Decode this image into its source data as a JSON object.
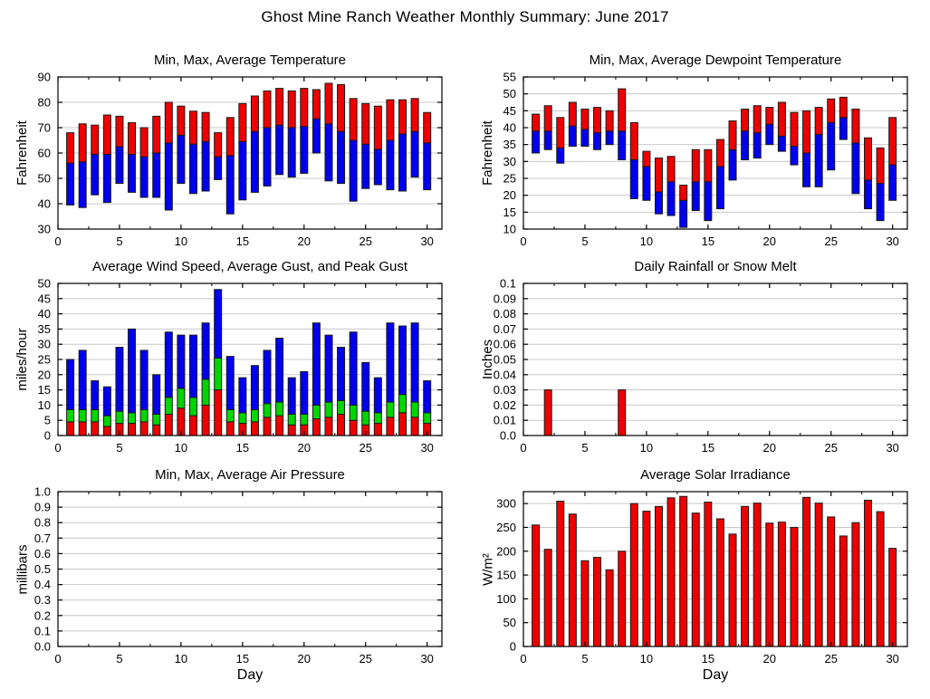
{
  "page": {
    "title": "Ghost Mine Ranch Weather Monthly Summary: June 2017"
  },
  "colors": {
    "red": "#ee0000",
    "blue": "#0000ee",
    "green": "#00d500",
    "bar_outline": "#1a1a1a",
    "grid": "#c8c8c8",
    "frame": "#000000"
  },
  "chart_data": [
    {
      "id": "temperature",
      "type": "bar",
      "subtype": "min-avg-max-range-bars",
      "title": "Min, Max, Average Temperature",
      "ylabel": "Fahrenheit",
      "xlabel": "",
      "ylim": [
        30,
        90
      ],
      "yticks": [
        30,
        40,
        50,
        60,
        70,
        80,
        90
      ],
      "ytick_labels": [
        "30",
        "40",
        "50",
        "60",
        "70",
        "80",
        "90"
      ],
      "xlim": [
        0,
        31.2
      ],
      "xticks": [
        0,
        5,
        10,
        15,
        20,
        25,
        30
      ],
      "grid": "horizontal",
      "legend": "none",
      "days": [
        1,
        2,
        3,
        4,
        5,
        6,
        7,
        8,
        9,
        10,
        11,
        12,
        13,
        14,
        15,
        16,
        17,
        18,
        19,
        20,
        21,
        22,
        23,
        24,
        25,
        26,
        27,
        28,
        29,
        30
      ],
      "stacks": [
        {
          "name": "min-to-average",
          "lower": "min",
          "upper": "avg",
          "color": "blue"
        },
        {
          "name": "average-to-max",
          "lower": "avg",
          "upper": "max",
          "color": "red"
        }
      ],
      "values": {
        "min": [
          39.5,
          38.5,
          43.5,
          40.5,
          48,
          44.5,
          42.5,
          42.5,
          37.5,
          48,
          44,
          45,
          49.5,
          36,
          41.5,
          44.5,
          47,
          51.5,
          50.5,
          52,
          60,
          49,
          48,
          41,
          46,
          47.5,
          45.5,
          45,
          50.5,
          45.5
        ],
        "avg": [
          56,
          56.5,
          59.5,
          59.5,
          62.5,
          59.5,
          58.5,
          60,
          64,
          67,
          63.5,
          64.5,
          58.5,
          59,
          64.5,
          68.5,
          70,
          71,
          70,
          70.5,
          73.5,
          71.5,
          68.5,
          65,
          63.5,
          61.5,
          65,
          67.5,
          68.5,
          64
        ],
        "max": [
          68,
          71.5,
          71,
          75,
          74.5,
          72,
          70,
          74.5,
          80,
          78.5,
          76.5,
          76,
          68,
          74,
          79.5,
          82.5,
          84.5,
          85.5,
          84.5,
          85.5,
          85,
          87.5,
          87,
          81.5,
          79.5,
          78.5,
          81,
          81,
          81.5,
          76
        ]
      }
    },
    {
      "id": "dewpoint",
      "type": "bar",
      "subtype": "min-avg-max-range-bars",
      "title": "Min, Max, Average Dewpoint Temperature",
      "ylabel": "Fahrenheit",
      "xlabel": "",
      "ylim": [
        10,
        55
      ],
      "yticks": [
        10,
        15,
        20,
        25,
        30,
        35,
        40,
        45,
        50,
        55
      ],
      "ytick_labels": [
        "10",
        "15",
        "20",
        "25",
        "30",
        "35",
        "40",
        "45",
        "50",
        "55"
      ],
      "xlim": [
        0,
        31.2
      ],
      "xticks": [
        0,
        5,
        10,
        15,
        20,
        25,
        30
      ],
      "grid": "horizontal",
      "legend": "none",
      "days": [
        1,
        2,
        3,
        4,
        5,
        6,
        7,
        8,
        9,
        10,
        11,
        12,
        13,
        14,
        15,
        16,
        17,
        18,
        19,
        20,
        21,
        22,
        23,
        24,
        25,
        26,
        27,
        28,
        29,
        30
      ],
      "stacks": [
        {
          "name": "min-to-average",
          "lower": "min",
          "upper": "avg",
          "color": "blue"
        },
        {
          "name": "average-to-max",
          "lower": "avg",
          "upper": "max",
          "color": "red"
        }
      ],
      "values": {
        "min": [
          32.5,
          33.5,
          29.5,
          34.5,
          34.5,
          33.5,
          35,
          30.5,
          19,
          18.5,
          14.5,
          14,
          10.5,
          15.5,
          12.5,
          16,
          24.5,
          30.5,
          31,
          35,
          33,
          29,
          22.5,
          22.5,
          27.5,
          36.5,
          20.5,
          16,
          12.5,
          18.5
        ],
        "avg": [
          39,
          39,
          34,
          40.5,
          39.5,
          38.5,
          39,
          39,
          30.5,
          28.5,
          21,
          24,
          18.5,
          24,
          24,
          28.5,
          33.5,
          39,
          38.5,
          41,
          37.5,
          34.5,
          32.5,
          38,
          41.5,
          43,
          35.5,
          24.5,
          23.5,
          29
        ],
        "max": [
          44,
          46.5,
          43,
          47.5,
          45.5,
          46,
          45,
          51.5,
          41.5,
          33,
          31,
          31.5,
          23,
          33.5,
          33.5,
          36.5,
          42,
          45.5,
          46.5,
          46,
          47.5,
          44.5,
          45,
          46,
          48.5,
          49,
          45.5,
          37,
          34,
          43
        ]
      }
    },
    {
      "id": "wind",
      "type": "bar",
      "subtype": "stacked-bars",
      "title": "Average Wind Speed, Average Gust, and Peak Gust",
      "ylabel": "miles/hour",
      "xlabel": "",
      "ylim": [
        0,
        50
      ],
      "yticks": [
        0,
        5,
        10,
        15,
        20,
        25,
        30,
        35,
        40,
        45,
        50
      ],
      "ytick_labels": [
        "0",
        "5",
        "10",
        "15",
        "20",
        "25",
        "30",
        "35",
        "40",
        "45",
        "50"
      ],
      "xlim": [
        0,
        31.2
      ],
      "xticks": [
        0,
        5,
        10,
        15,
        20,
        25,
        30
      ],
      "grid": "horizontal",
      "legend": "none",
      "days": [
        1,
        2,
        3,
        4,
        5,
        6,
        7,
        8,
        9,
        10,
        11,
        12,
        13,
        14,
        15,
        16,
        17,
        18,
        19,
        20,
        21,
        22,
        23,
        24,
        25,
        26,
        27,
        28,
        29,
        30
      ],
      "stacks": [
        {
          "name": "average-wind-speed",
          "lower": null,
          "upper": "avg_speed",
          "color": "red"
        },
        {
          "name": "average-gust",
          "lower": "avg_speed",
          "upper": "avg_gust",
          "color": "green"
        },
        {
          "name": "peak-gust",
          "lower": "avg_gust",
          "upper": "peak_gust",
          "color": "blue"
        }
      ],
      "values": {
        "avg_speed": [
          4.5,
          4.5,
          4.5,
          3,
          4,
          4,
          4.5,
          3.5,
          7,
          9,
          6.5,
          10,
          15,
          4.5,
          4,
          4.5,
          6,
          6.5,
          3.5,
          3.5,
          5.5,
          6,
          7,
          5,
          3.5,
          4,
          6,
          7.5,
          6,
          4
        ],
        "avg_gust": [
          8.5,
          8.5,
          8.5,
          6.5,
          8,
          7.5,
          8.5,
          7,
          12.5,
          15.5,
          12.5,
          18.5,
          25.5,
          8.5,
          7.5,
          8.5,
          10.5,
          11,
          7,
          7,
          10,
          11,
          11.5,
          10,
          8,
          7.5,
          11,
          13.5,
          11,
          7.5
        ],
        "peak_gust": [
          25,
          28,
          18,
          16,
          29,
          35,
          28,
          20,
          34,
          33,
          33,
          37,
          48,
          26,
          19,
          23,
          28,
          32,
          19,
          21,
          37,
          33,
          29,
          34,
          24,
          19,
          37,
          36,
          37,
          18
        ]
      }
    },
    {
      "id": "rainfall",
      "type": "bar",
      "subtype": "single-bars",
      "title": "Daily Rainfall or Snow Melt",
      "ylabel": "Inches",
      "xlabel": "",
      "ylim": [
        0,
        0.1
      ],
      "yticks": [
        0,
        0.01,
        0.02,
        0.03,
        0.04,
        0.05,
        0.06,
        0.07,
        0.08,
        0.09,
        0.1
      ],
      "ytick_labels": [
        "0.0",
        "0.01",
        "0.02",
        "0.03",
        "0.04",
        "0.05",
        "0.06",
        "0.07",
        "0.08",
        "0.09",
        "0.1"
      ],
      "xlim": [
        0,
        31.2
      ],
      "xticks": [
        0,
        5,
        10,
        15,
        20,
        25,
        30
      ],
      "grid": "horizontal",
      "legend": "none",
      "days": [
        1,
        2,
        3,
        4,
        5,
        6,
        7,
        8,
        9,
        10,
        11,
        12,
        13,
        14,
        15,
        16,
        17,
        18,
        19,
        20,
        21,
        22,
        23,
        24,
        25,
        26,
        27,
        28,
        29,
        30
      ],
      "stacks": [
        {
          "name": "rainfall",
          "lower": null,
          "upper": "value",
          "color": "red"
        }
      ],
      "values": {
        "value": [
          0,
          0.03,
          0,
          0,
          0,
          0,
          0,
          0.03,
          0,
          0,
          0,
          0,
          0,
          0,
          0,
          0,
          0,
          0,
          0,
          0,
          0,
          0,
          0,
          0,
          0,
          0,
          0,
          0,
          0,
          0
        ]
      }
    },
    {
      "id": "pressure",
      "type": "bar",
      "subtype": "min-avg-max-range-bars",
      "title": "Min, Max, Average Air Pressure",
      "ylabel": "millibars",
      "xlabel": "Day",
      "ylim": [
        0,
        1.0
      ],
      "yticks": [
        0,
        0.1,
        0.2,
        0.3,
        0.4,
        0.5,
        0.6,
        0.7,
        0.8,
        0.9,
        1.0
      ],
      "ytick_labels": [
        "0.0",
        "0.1",
        "0.2",
        "0.3",
        "0.4",
        "0.5",
        "0.6",
        "0.7",
        "0.8",
        "0.9",
        "1.0"
      ],
      "xlim": [
        0,
        31.2
      ],
      "xticks": [
        0,
        5,
        10,
        15,
        20,
        25,
        30
      ],
      "grid": "horizontal",
      "legend": "none",
      "days": [
        1,
        2,
        3,
        4,
        5,
        6,
        7,
        8,
        9,
        10,
        11,
        12,
        13,
        14,
        15,
        16,
        17,
        18,
        19,
        20,
        21,
        22,
        23,
        24,
        25,
        26,
        27,
        28,
        29,
        30
      ],
      "stacks": [
        {
          "name": "pressure",
          "lower": null,
          "upper": "value",
          "color": "red"
        }
      ],
      "values": {
        "value": []
      }
    },
    {
      "id": "solar",
      "type": "bar",
      "subtype": "single-bars",
      "title": "Average Solar Irradiance",
      "ylabel": "W/m²",
      "xlabel": "Day",
      "ylim": [
        0,
        325
      ],
      "yticks": [
        0,
        50,
        100,
        150,
        200,
        250,
        300
      ],
      "ytick_labels": [
        "0",
        "50",
        "100",
        "150",
        "200",
        "250",
        "300"
      ],
      "xlim": [
        0,
        31.2
      ],
      "xticks": [
        0,
        5,
        10,
        15,
        20,
        25,
        30
      ],
      "grid": "horizontal",
      "legend": "none",
      "days": [
        1,
        2,
        3,
        4,
        5,
        6,
        7,
        8,
        9,
        10,
        11,
        12,
        13,
        14,
        15,
        16,
        17,
        18,
        19,
        20,
        21,
        22,
        23,
        24,
        25,
        26,
        27,
        28,
        29,
        30
      ],
      "stacks": [
        {
          "name": "solar-irradiance",
          "lower": null,
          "upper": "value",
          "color": "red"
        }
      ],
      "values": {
        "value": [
          255,
          204,
          305,
          278,
          180,
          187,
          161,
          200,
          300,
          284,
          294,
          312,
          315,
          280,
          303,
          268,
          236,
          294,
          301,
          259,
          261,
          250,
          313,
          301,
          272,
          232,
          260,
          307,
          283,
          206
        ]
      }
    }
  ]
}
